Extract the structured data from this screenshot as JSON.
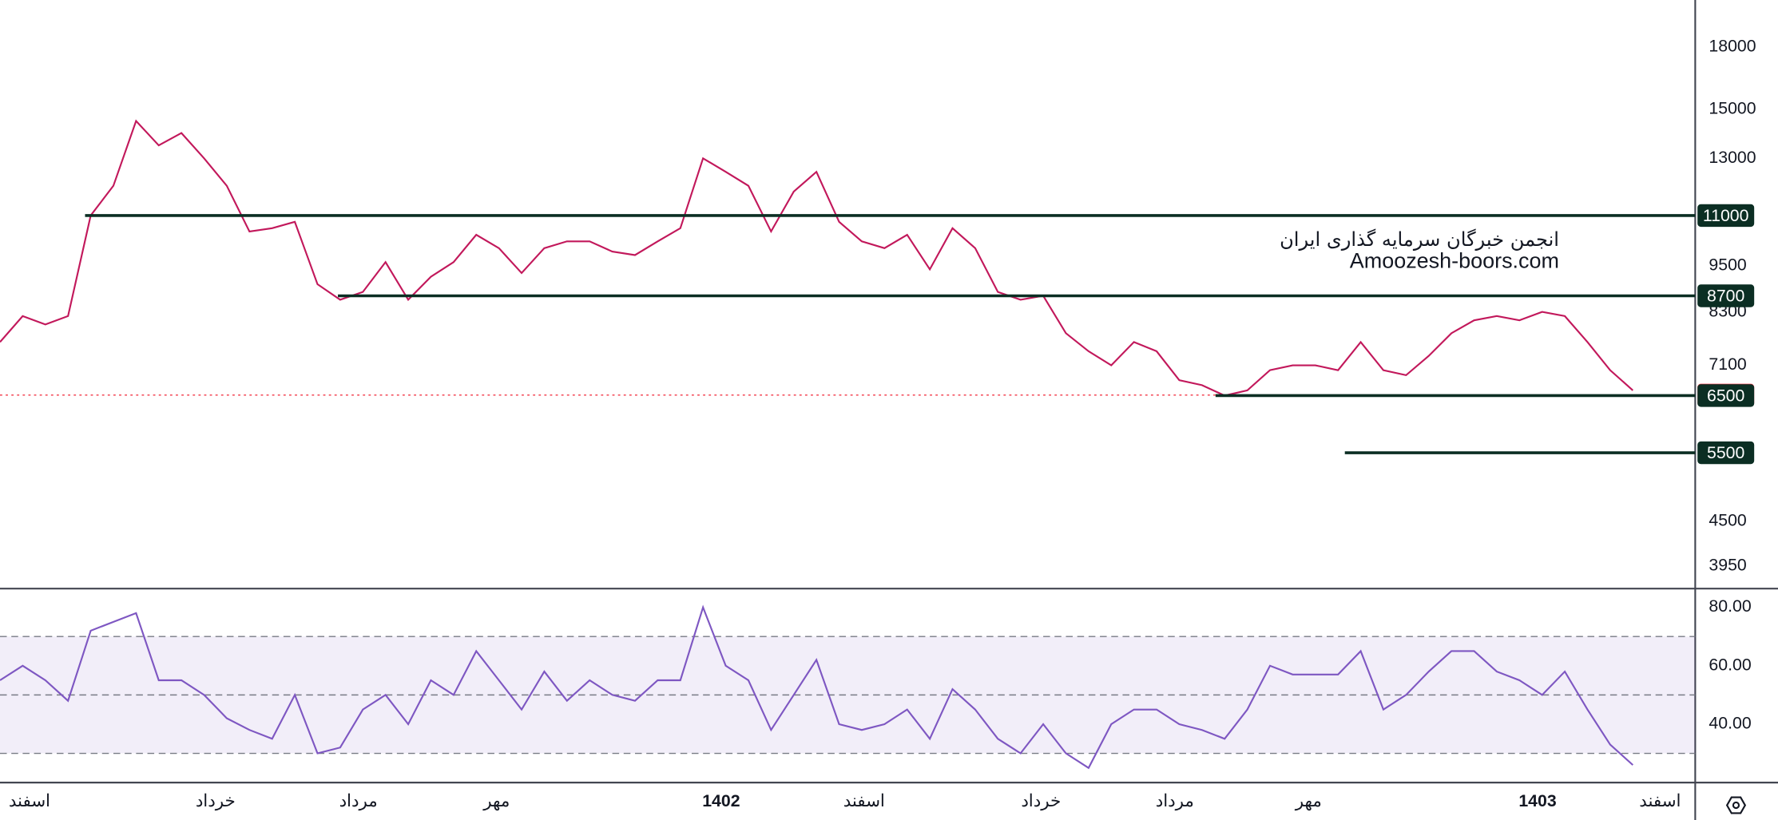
{
  "chart_data": [
    {
      "type": "line",
      "name": "price",
      "log_scale": true,
      "color": "#c2185b",
      "ylim": [
        3710,
        20650
      ],
      "yticks": [
        18000,
        15000,
        13000,
        9500,
        8300,
        7100,
        4500,
        3950
      ],
      "xlim": [
        0,
        74.75
      ],
      "xticks": [
        {
          "value": 1.3,
          "label": "اسفند"
        },
        {
          "value": 9.5,
          "label": "خرداد"
        },
        {
          "value": 15.8,
          "label": "مرداد"
        },
        {
          "value": 21.9,
          "label": "مهر"
        },
        {
          "value": 31.8,
          "label": "1402"
        },
        {
          "value": 38.1,
          "label": "اسفند"
        },
        {
          "value": 45.9,
          "label": "خرداد"
        },
        {
          "value": 51.8,
          "label": "مرداد"
        },
        {
          "value": 57.7,
          "label": "مهر"
        },
        {
          "value": 67.8,
          "label": "1403"
        },
        {
          "value": 73.2,
          "label": "اسفند"
        }
      ],
      "x": [
        0,
        1,
        2,
        3,
        4,
        5,
        6,
        7,
        8,
        9,
        10,
        11,
        12,
        13,
        14,
        15,
        16,
        17,
        18,
        19,
        20,
        21,
        22,
        23,
        24,
        25,
        26,
        27,
        28,
        29,
        30,
        31,
        32,
        33,
        34,
        35,
        36,
        37,
        38,
        39,
        40,
        41,
        42,
        43,
        44,
        45,
        46,
        47,
        48,
        49,
        50,
        51,
        52,
        53,
        54,
        55,
        56,
        57,
        58,
        59,
        60,
        61,
        62,
        63,
        64,
        65,
        66,
        67,
        68,
        69,
        70,
        71,
        72
      ],
      "values": [
        7600,
        8200,
        8000,
        8200,
        11000,
        12000,
        14500,
        13500,
        14000,
        13000,
        12000,
        10500,
        10600,
        10800,
        9000,
        8600,
        8800,
        9600,
        8600,
        9200,
        9600,
        10400,
        10000,
        9300,
        10000,
        10200,
        10200,
        9900,
        9800,
        10200,
        10600,
        13000,
        12500,
        12000,
        10500,
        11800,
        12500,
        10800,
        10200,
        10000,
        10400,
        9400,
        10600,
        10000,
        8800,
        8600,
        8700,
        7800,
        7400,
        7100,
        7600,
        7400,
        6800,
        6700,
        6500,
        6600,
        7000,
        7100,
        7100,
        7000,
        7600,
        7000,
        6900,
        7300,
        7800,
        8100,
        8200,
        8100,
        8300,
        8200,
        7600,
        7000,
        6600
      ],
      "levels": [
        {
          "value": 11000,
          "x_range": [
            3.75,
            74.75
          ]
        },
        {
          "value": 8700,
          "x_range": [
            14.9,
            74.75
          ]
        },
        {
          "value": 6500,
          "x_range": [
            53.6,
            74.75
          ]
        },
        {
          "value": 5500,
          "x_range": [
            59.3,
            74.75
          ]
        }
      ],
      "last_price": 6510,
      "annotations": [
        "انجمن خبرگان سرمایه گذاری ایران",
        "Amoozesh-boors.com"
      ]
    },
    {
      "type": "line",
      "name": "rsi",
      "color": "#7e57c2",
      "ylim": [
        20,
        86
      ],
      "yticks": [
        {
          "value": 80,
          "label": "80.00"
        },
        {
          "value": 60,
          "label": "60.00"
        },
        {
          "value": 40,
          "label": "40.00"
        }
      ],
      "bands": [
        30,
        50,
        70
      ],
      "values": [
        55,
        60,
        55,
        48,
        72,
        75,
        78,
        55,
        55,
        50,
        42,
        38,
        35,
        50,
        30,
        32,
        45,
        50,
        40,
        55,
        50,
        65,
        55,
        45,
        58,
        48,
        55,
        50,
        48,
        55,
        55,
        80,
        60,
        55,
        38,
        50,
        62,
        40,
        38,
        40,
        45,
        35,
        52,
        45,
        35,
        30,
        40,
        30,
        25,
        40,
        45,
        45,
        40,
        38,
        35,
        45,
        60,
        57,
        57,
        57,
        65,
        45,
        50,
        58,
        65,
        65,
        58,
        55,
        50,
        58,
        45,
        33,
        26
      ]
    }
  ]
}
